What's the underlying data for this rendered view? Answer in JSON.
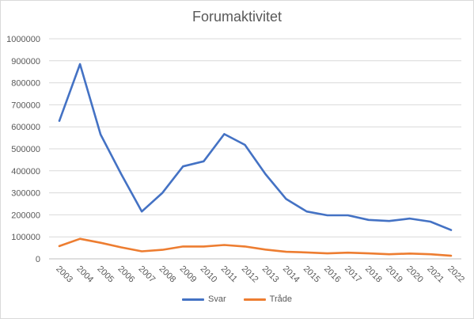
{
  "chart_data": {
    "type": "line",
    "title": "Forumaktivitet",
    "xlabel": "",
    "ylabel": "",
    "ylim": [
      0,
      1000000
    ],
    "yticks": [
      0,
      100000,
      200000,
      300000,
      400000,
      500000,
      600000,
      700000,
      800000,
      900000,
      1000000
    ],
    "ytick_labels": [
      "0",
      "100000",
      "200000",
      "300000",
      "400000",
      "500000",
      "600000",
      "700000",
      "800000",
      "900000",
      "1000000"
    ],
    "grid": true,
    "legend_position": "bottom",
    "categories": [
      "2003",
      "2004",
      "2005",
      "2006",
      "2007",
      "2008",
      "2009",
      "2010",
      "2011",
      "2012",
      "2013",
      "2014",
      "2015",
      "2016",
      "2017",
      "2018",
      "2019",
      "2020",
      "2021",
      "2022"
    ],
    "series": [
      {
        "name": "Svar",
        "color": "#4472c4",
        "values": [
          627000,
          885000,
          565000,
          385000,
          215000,
          300000,
          420000,
          443000,
          567000,
          518000,
          385000,
          272000,
          215000,
          198000,
          198000,
          177000,
          172000,
          183000,
          169000,
          131000
        ]
      },
      {
        "name": "Tråde",
        "color": "#ed7d31",
        "values": [
          58000,
          91000,
          73000,
          52000,
          34000,
          41000,
          56000,
          56000,
          63000,
          56000,
          42000,
          32000,
          29000,
          25000,
          28000,
          25000,
          21000,
          24000,
          21000,
          14000
        ]
      }
    ]
  }
}
